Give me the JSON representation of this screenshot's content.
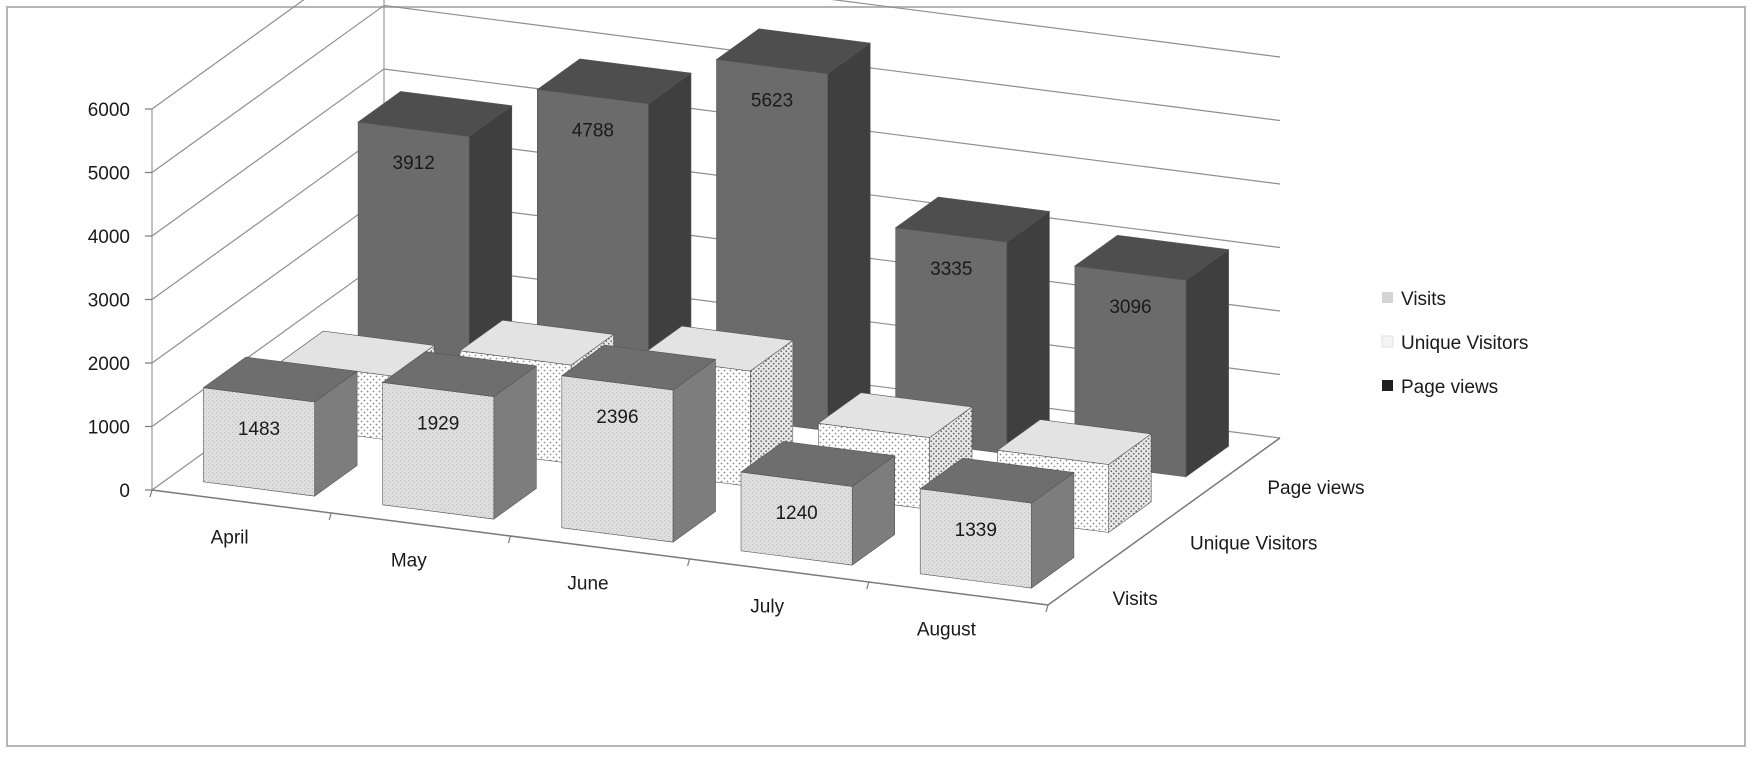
{
  "chart_data": {
    "type": "bar",
    "title": "",
    "xlabel": "",
    "ylabel": "",
    "ylim": [
      0,
      6000
    ],
    "yticks": [
      0,
      1000,
      2000,
      3000,
      4000,
      5000,
      6000
    ],
    "grid": true,
    "legend_position": "right",
    "categories": [
      "April",
      "May",
      "June",
      "July",
      "August"
    ],
    "depth_labels": [
      "Visits",
      "Unique Visitors",
      "Page views"
    ],
    "series": [
      {
        "name": "Visits",
        "values": [
          1483,
          1929,
          2396,
          1240,
          1339
        ],
        "color": "#d9d9d9",
        "pattern": "speckle"
      },
      {
        "name": "Unique Visitors",
        "values": [
          1015,
          1549,
          1818,
          1132,
          1070
        ],
        "color": "#ffffff",
        "pattern": "dots"
      },
      {
        "name": "Page views",
        "values": [
          3912,
          4788,
          5623,
          3335,
          3096
        ],
        "color": "#5a5a5a",
        "pattern": "solid"
      }
    ]
  }
}
